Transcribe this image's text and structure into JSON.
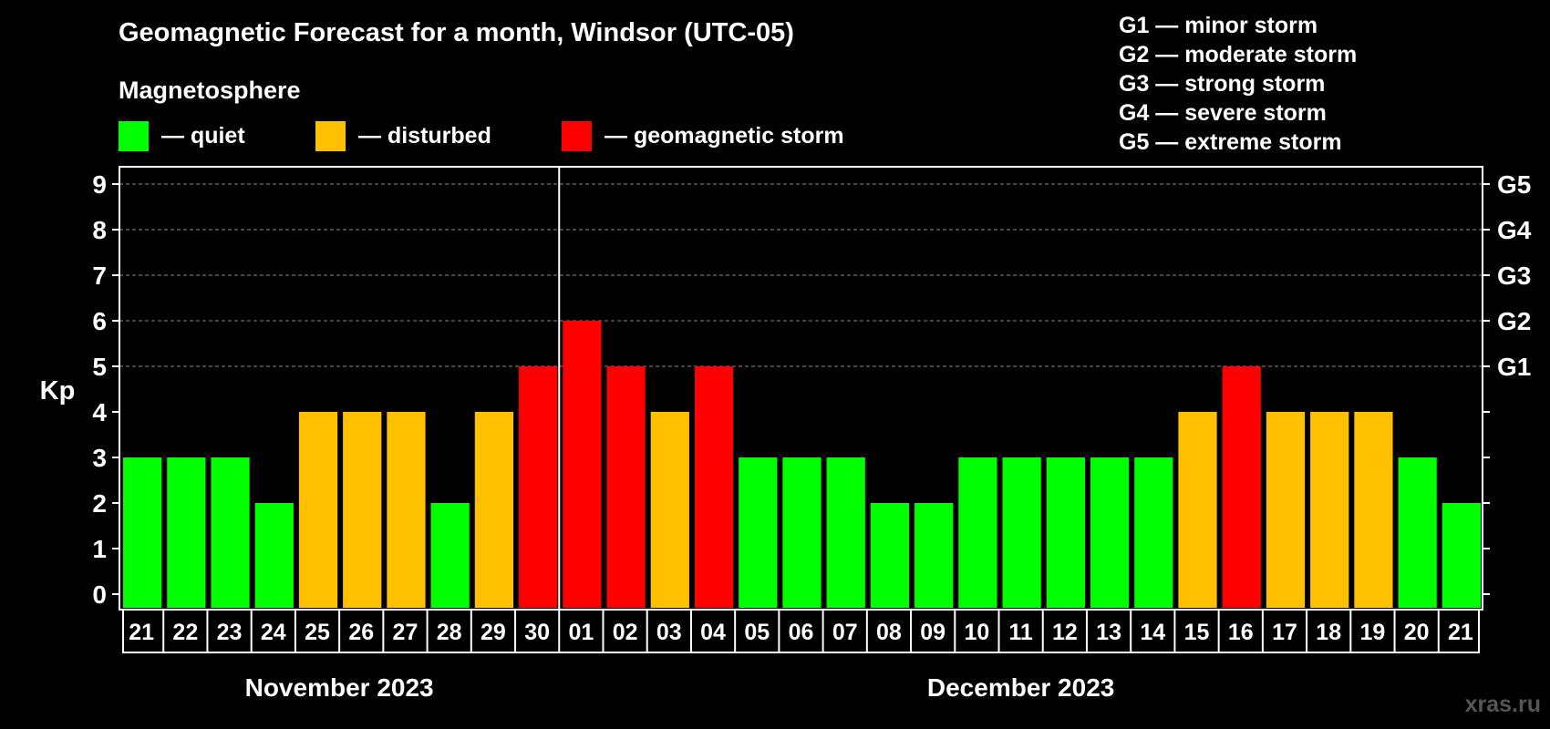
{
  "title": "Geomagnetic Forecast for a month, Windsor (UTC-05)",
  "subtitle": "Magnetosphere",
  "legend": [
    {
      "label": "— quiet",
      "color": "#00ff00"
    },
    {
      "label": "— disturbed",
      "color": "#ffc000"
    },
    {
      "label": "— geomagnetic storm",
      "color": "#ff0000"
    }
  ],
  "g_legend": [
    "G1 — minor storm",
    "G2 — moderate storm",
    "G3 — strong storm",
    "G4 — severe storm",
    "G5 — extreme storm"
  ],
  "watermark": "xras.ru",
  "colors": {
    "quiet": "#00ff00",
    "disturbed": "#ffc000",
    "storm": "#ff0000"
  },
  "chart_data": {
    "type": "bar",
    "ylabel": "Kp",
    "ylim": [
      0,
      9
    ],
    "yticks": [
      0,
      1,
      2,
      3,
      4,
      5,
      6,
      7,
      8,
      9
    ],
    "right_ticks": [
      {
        "kp": 5,
        "label": "G1"
      },
      {
        "kp": 6,
        "label": "G2"
      },
      {
        "kp": 7,
        "label": "G3"
      },
      {
        "kp": 8,
        "label": "G4"
      },
      {
        "kp": 9,
        "label": "G5"
      }
    ],
    "grid": "dashed horizontal at Kp 5–9",
    "categories": [
      "21",
      "22",
      "23",
      "24",
      "25",
      "26",
      "27",
      "28",
      "29",
      "30",
      "01",
      "02",
      "03",
      "04",
      "05",
      "06",
      "07",
      "08",
      "09",
      "10",
      "11",
      "12",
      "13",
      "14",
      "15",
      "16",
      "17",
      "18",
      "19",
      "20",
      "21"
    ],
    "values": [
      3,
      3,
      3,
      2,
      4,
      4,
      4,
      2,
      4,
      5,
      6,
      5,
      4,
      5,
      3,
      3,
      3,
      2,
      2,
      3,
      3,
      3,
      3,
      3,
      4,
      5,
      4,
      4,
      4,
      3,
      2
    ],
    "levels": [
      "quiet",
      "quiet",
      "quiet",
      "quiet",
      "disturbed",
      "disturbed",
      "disturbed",
      "quiet",
      "disturbed",
      "storm",
      "storm",
      "storm",
      "disturbed",
      "storm",
      "quiet",
      "quiet",
      "quiet",
      "quiet",
      "quiet",
      "quiet",
      "quiet",
      "quiet",
      "quiet",
      "quiet",
      "disturbed",
      "storm",
      "disturbed",
      "disturbed",
      "disturbed",
      "quiet",
      "quiet"
    ],
    "months": [
      {
        "label": "November 2023",
        "start_index": 0,
        "end_index": 9
      },
      {
        "label": "December 2023",
        "start_index": 10,
        "end_index": 30
      }
    ]
  }
}
